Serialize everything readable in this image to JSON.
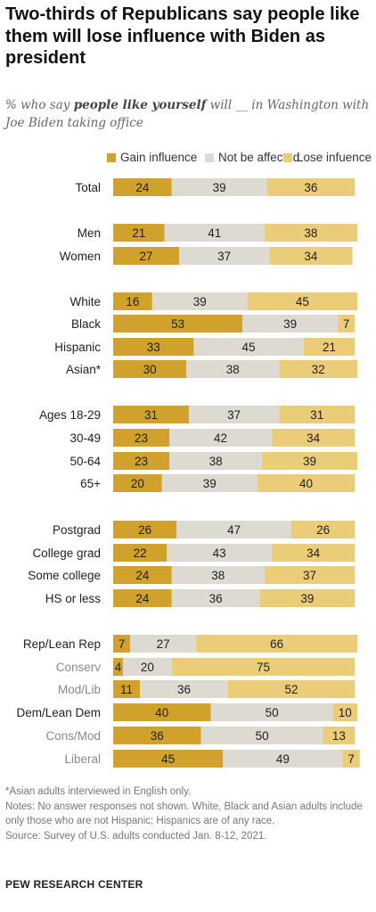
{
  "title": "Two-thirds of Republicans say people like them will lose influence with Biden as president",
  "subtitle": {
    "part1": "% who say ",
    "emphasis": "people like yourself",
    "part2": " will __ in Washington with Joe Biden taking office"
  },
  "colors": {
    "gain": "#d0a22b",
    "not_affected": "#dddad1",
    "lose": "#ebcc79",
    "label_dark": "#222222",
    "label_muted": "#8a8a8a"
  },
  "chart_data": {
    "type": "bar",
    "orientation": "horizontal",
    "stacked": true,
    "xlim": [
      0,
      100
    ],
    "series": [
      {
        "name": "Gain influence"
      },
      {
        "name": "Not be affected"
      },
      {
        "name": "Lose infuence"
      }
    ],
    "rows": [
      {
        "label": "Total",
        "values": [
          24,
          39,
          36
        ],
        "muted": false
      },
      {
        "label": "Men",
        "values": [
          21,
          41,
          38
        ],
        "muted": false
      },
      {
        "label": "Women",
        "values": [
          27,
          37,
          34
        ],
        "muted": false
      },
      {
        "label": "White",
        "values": [
          16,
          39,
          45
        ],
        "muted": false
      },
      {
        "label": "Black",
        "values": [
          53,
          39,
          7
        ],
        "muted": false
      },
      {
        "label": "Hispanic",
        "values": [
          33,
          45,
          21
        ],
        "muted": false
      },
      {
        "label": "Asian*",
        "values": [
          30,
          38,
          32
        ],
        "muted": false
      },
      {
        "label": "Ages 18-29",
        "values": [
          31,
          37,
          31
        ],
        "muted": false
      },
      {
        "label": "30-49",
        "values": [
          23,
          42,
          34
        ],
        "muted": false
      },
      {
        "label": "50-64",
        "values": [
          23,
          38,
          39
        ],
        "muted": false
      },
      {
        "label": "65+",
        "values": [
          20,
          39,
          40
        ],
        "muted": false
      },
      {
        "label": "Postgrad",
        "values": [
          26,
          47,
          26
        ],
        "muted": false
      },
      {
        "label": "College grad",
        "values": [
          22,
          43,
          34
        ],
        "muted": false
      },
      {
        "label": "Some college",
        "values": [
          24,
          38,
          37
        ],
        "muted": false
      },
      {
        "label": "HS or less",
        "values": [
          24,
          36,
          39
        ],
        "muted": false
      },
      {
        "label": "Rep/Lean Rep",
        "values": [
          7,
          27,
          66
        ],
        "muted": false
      },
      {
        "label": "Conserv",
        "values": [
          4,
          20,
          75
        ],
        "muted": true
      },
      {
        "label": "Mod/Lib",
        "values": [
          11,
          36,
          52
        ],
        "muted": true
      },
      {
        "label": "Dem/Lean Dem",
        "values": [
          40,
          50,
          10
        ],
        "muted": false
      },
      {
        "label": "Cons/Mod",
        "values": [
          36,
          50,
          13
        ],
        "muted": true
      },
      {
        "label": "Liberal",
        "values": [
          45,
          49,
          7
        ],
        "muted": true
      }
    ]
  },
  "notes": {
    "asterisk": "*Asian adults interviewed in English only.",
    "note": "Notes: No answer responses not shown. White, Black and Asian adults include only those who are not Hispanic; Hispanics are of any race.",
    "source": "Source: Survey of U.S. adults conducted Jan. 8-12, 2021."
  },
  "credit": "PEW RESEARCH CENTER"
}
